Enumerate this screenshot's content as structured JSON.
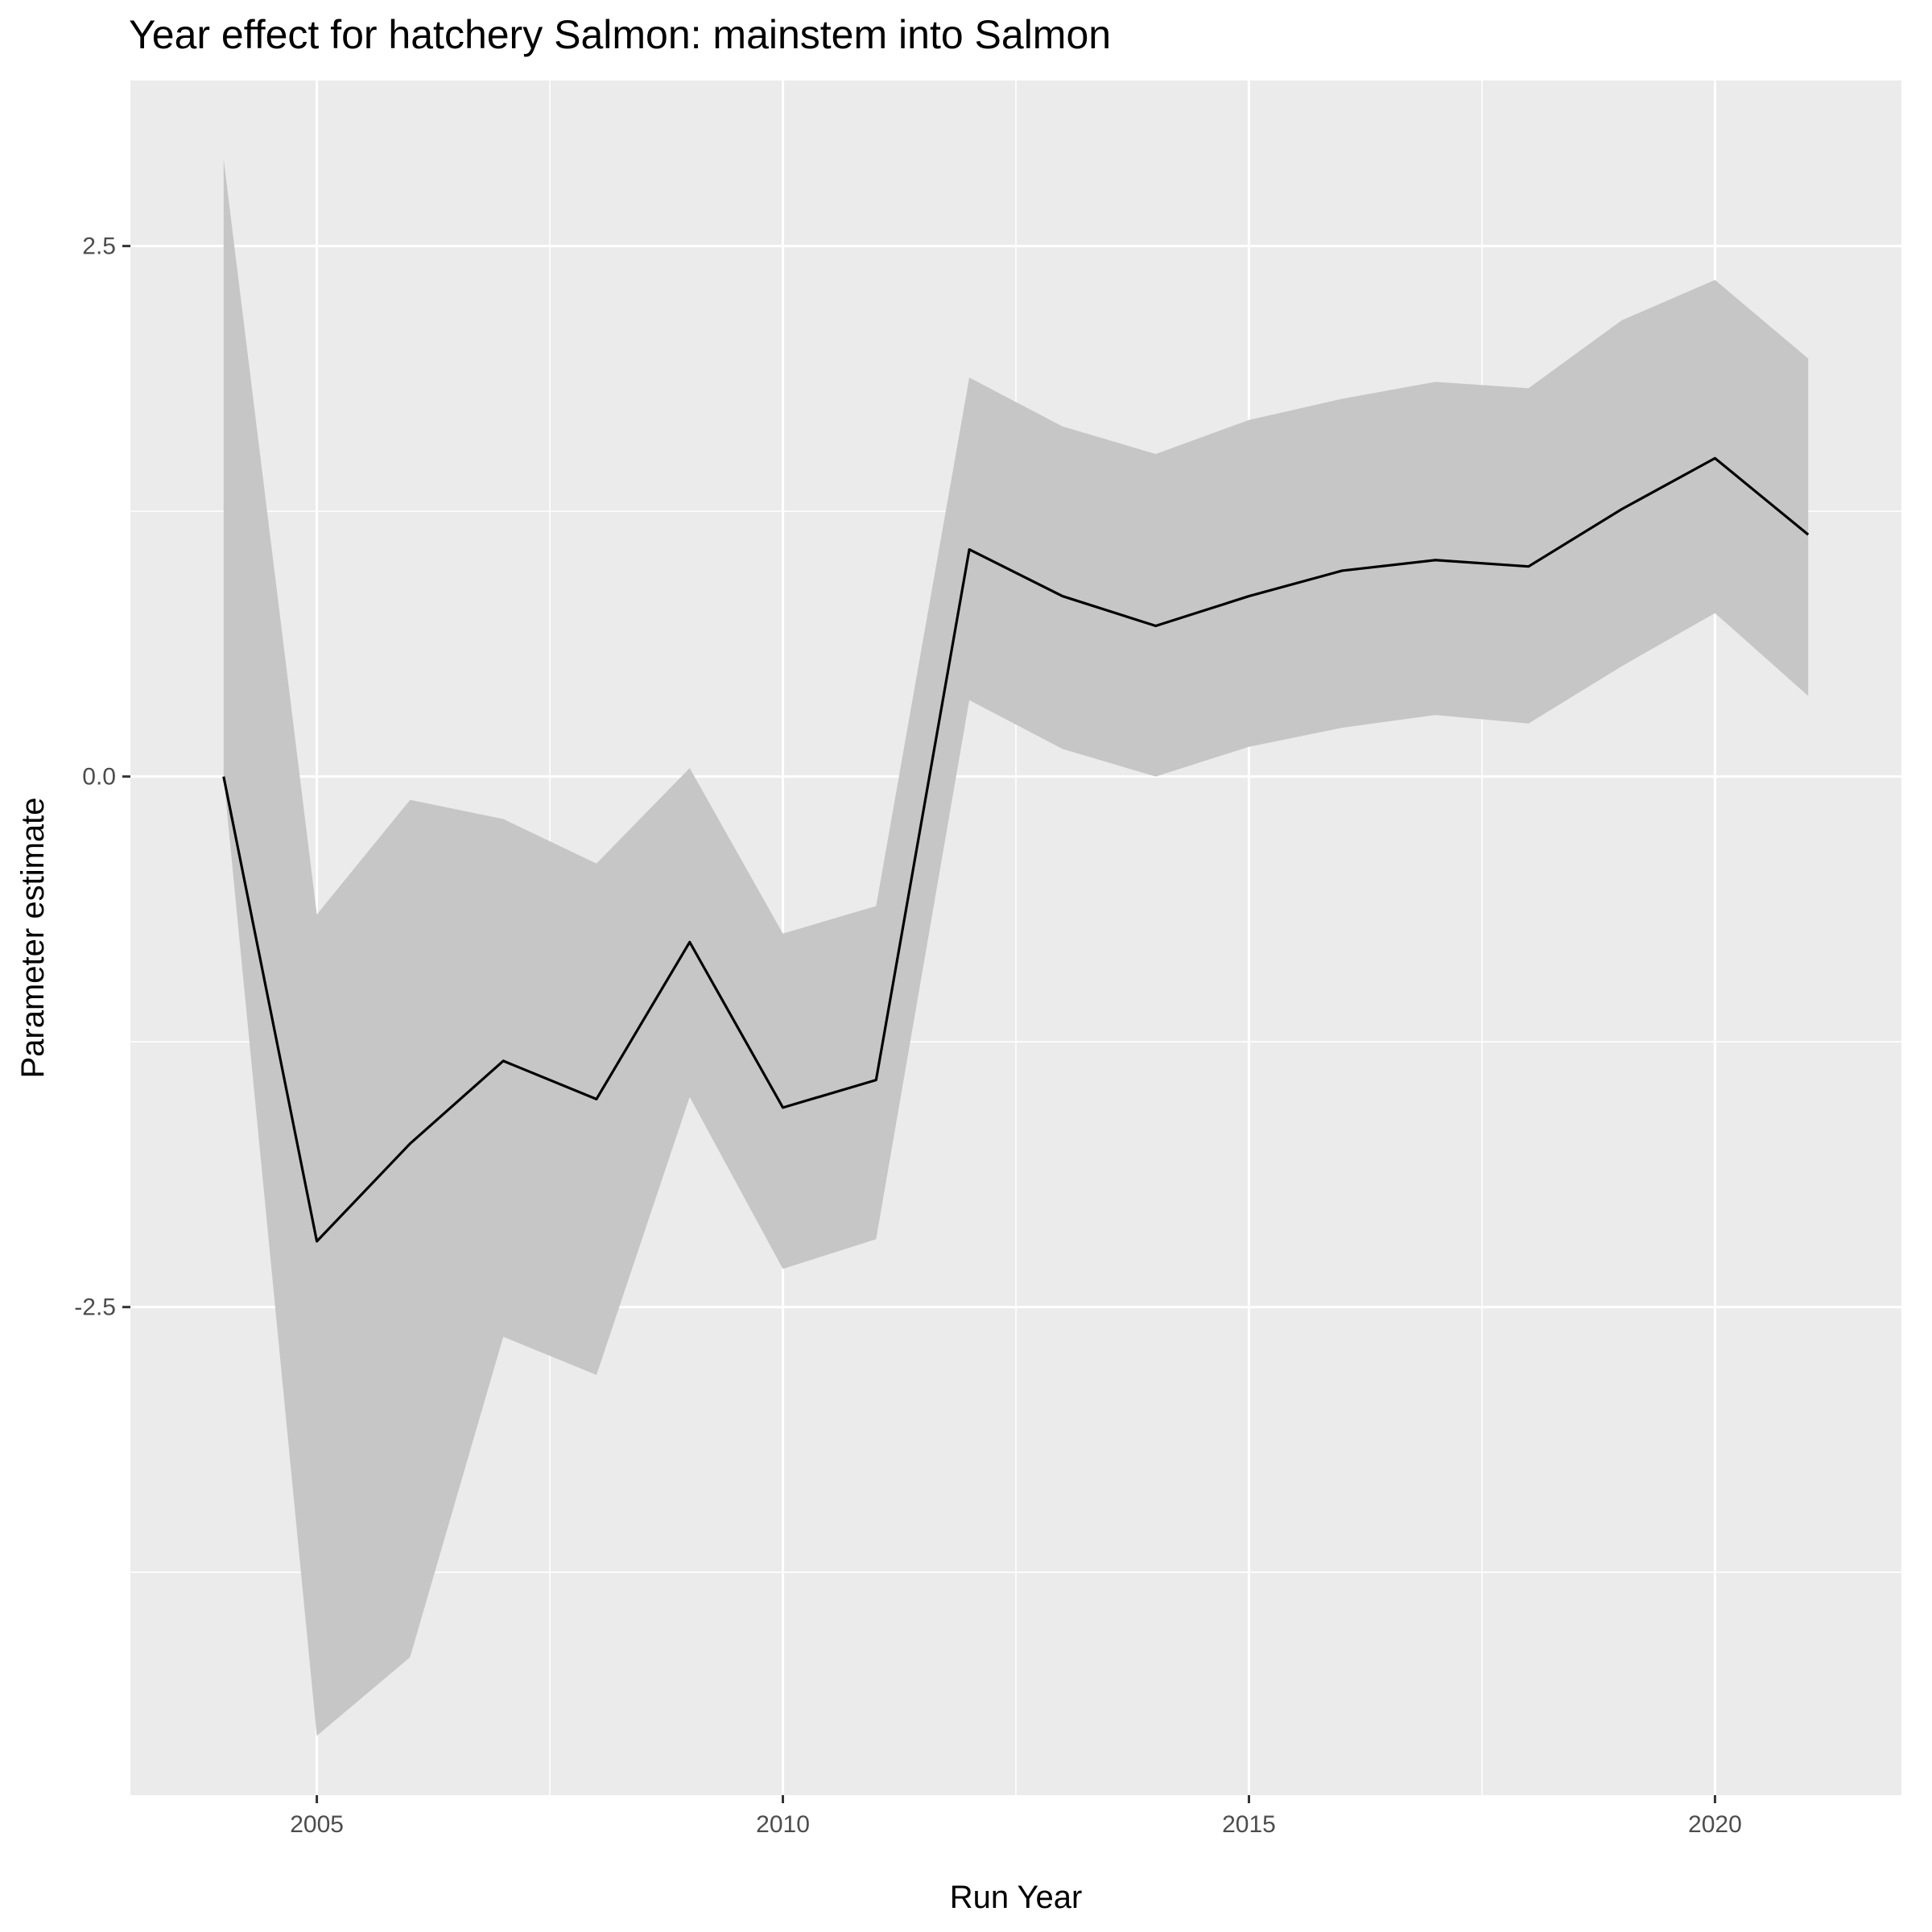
{
  "chart_data": {
    "type": "line",
    "title": "Year effect for hatchery Salmon: mainstem into Salmon",
    "xlabel": "Run Year",
    "ylabel": "Parameter estimate",
    "xlim": [
      2003,
      2022
    ],
    "ylim": [
      -4.8,
      3.28
    ],
    "x_ticks": [
      2005,
      2010,
      2015,
      2020
    ],
    "y_ticks": [
      -2.5,
      0.0,
      2.5
    ],
    "x_tick_labels": [
      "2005",
      "2010",
      "2015",
      "2020"
    ],
    "y_tick_labels": [
      "-2.5",
      "0.0",
      "2.5"
    ],
    "grid": true,
    "legend": "none",
    "colors": {
      "panel": "#ebebeb",
      "grid": "#ffffff",
      "ribbon": "#c6c6c6",
      "line": "#000000"
    },
    "series": [
      {
        "x": [
          2004,
          2005,
          2006,
          2007,
          2008,
          2009,
          2010,
          2011,
          2012,
          2013,
          2014,
          2015,
          2016,
          2017,
          2018,
          2019,
          2020,
          2021
        ],
        "y": [
          0.0,
          -2.19,
          -1.73,
          -1.34,
          -1.52,
          -0.78,
          -1.56,
          -1.43,
          1.07,
          0.85,
          0.71,
          0.85,
          0.97,
          1.02,
          0.99,
          1.26,
          1.5,
          1.14
        ],
        "lower": [
          0.0,
          -4.52,
          -4.15,
          -2.64,
          -2.82,
          -1.51,
          -2.32,
          -2.18,
          0.36,
          0.13,
          0.0,
          0.14,
          0.23,
          0.29,
          0.25,
          0.52,
          0.77,
          0.38
        ],
        "upper": [
          2.91,
          -0.65,
          -0.11,
          -0.2,
          -0.41,
          0.04,
          -0.74,
          -0.61,
          1.88,
          1.65,
          1.52,
          1.68,
          1.78,
          1.86,
          1.83,
          2.15,
          2.34,
          1.97
        ]
      }
    ]
  }
}
